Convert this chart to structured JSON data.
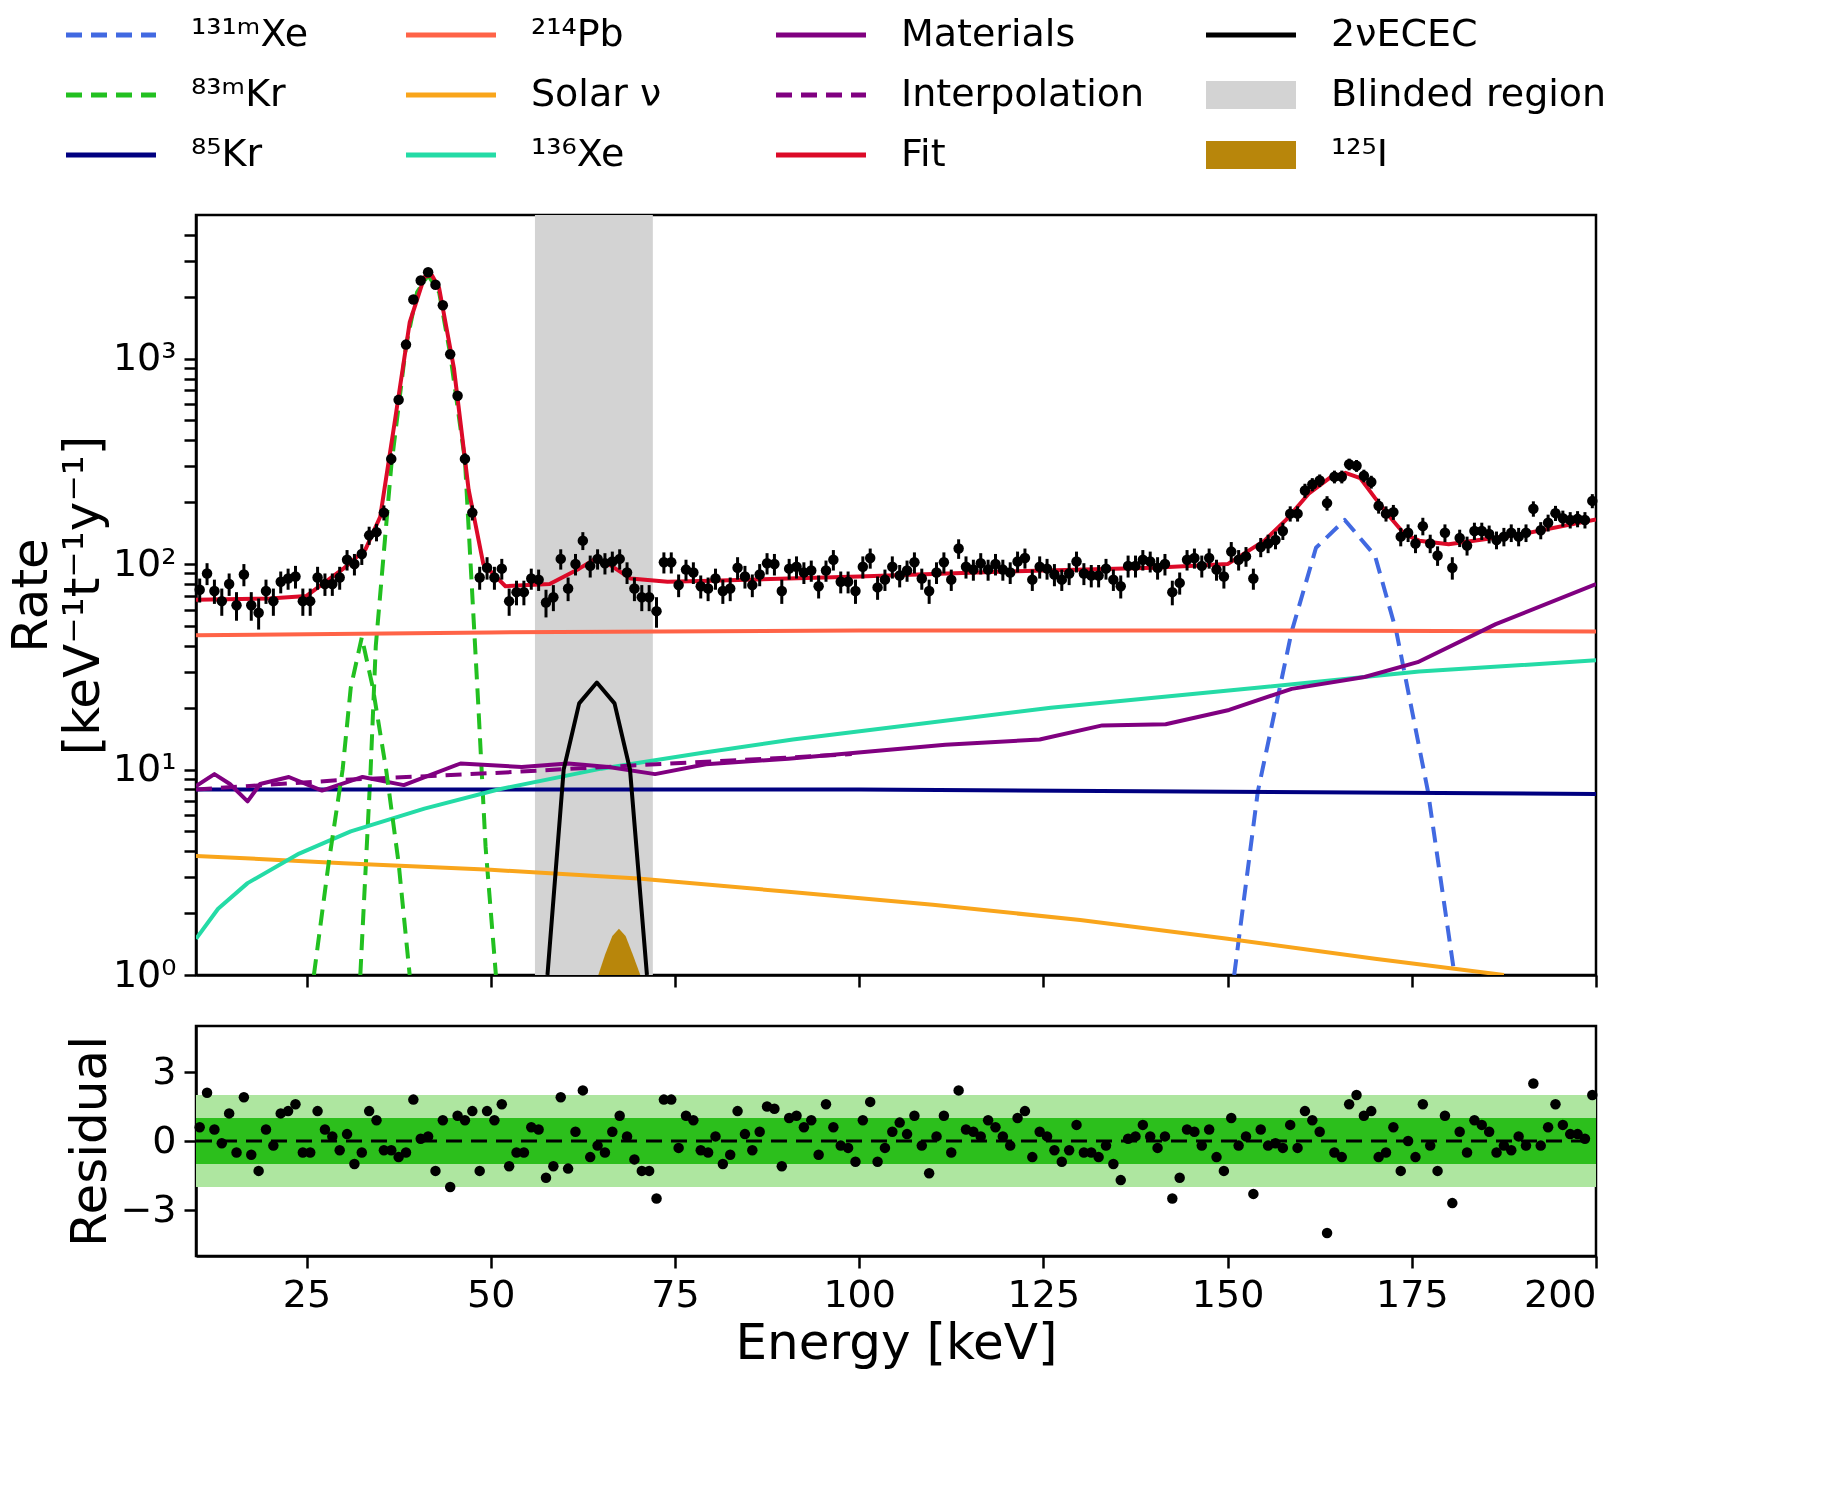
{
  "chart_data": [
    {
      "type": "line",
      "ylabel": "Rate [keV⁻¹t⁻¹y⁻¹]",
      "legend": "top",
      "log": "y",
      "tick_labels": "y",
      "xlim": [
        10,
        200
      ],
      "xticks": [
        25,
        50,
        75,
        100,
        125,
        150,
        175,
        200
      ],
      "ylim": [
        1,
        5000
      ],
      "yticks": [
        {
          "value": 1,
          "label": "10⁰"
        },
        {
          "value": 2,
          "label": null
        },
        {
          "value": 3,
          "label": null
        },
        {
          "value": 4,
          "label": null
        },
        {
          "value": 5,
          "label": null
        },
        {
          "value": 6,
          "label": null
        },
        {
          "value": 7,
          "label": null
        },
        {
          "value": 8,
          "label": null
        },
        {
          "value": 9,
          "label": null
        },
        {
          "value": 10,
          "label": "10¹"
        },
        {
          "value": 20,
          "label": null
        },
        {
          "value": 30,
          "label": null
        },
        {
          "value": 40,
          "label": null
        },
        {
          "value": 50,
          "label": null
        },
        {
          "value": 60,
          "label": null
        },
        {
          "value": 70,
          "label": null
        },
        {
          "value": 80,
          "label": null
        },
        {
          "value": 90,
          "label": null
        },
        {
          "value": 100,
          "label": "10²"
        },
        {
          "value": 200,
          "label": null
        },
        {
          "value": 300,
          "label": null
        },
        {
          "value": 400,
          "label": null
        },
        {
          "value": 500,
          "label": null
        },
        {
          "value": 600,
          "label": null
        },
        {
          "value": 700,
          "label": null
        },
        {
          "value": 800,
          "label": null
        },
        {
          "value": 900,
          "label": null
        },
        {
          "value": 1000,
          "label": "10³"
        },
        {
          "value": 2000,
          "label": null
        },
        {
          "value": 3000,
          "label": null
        },
        {
          "value": 4000,
          "label": null
        }
      ],
      "bands": [
        {
          "axis": "x",
          "from": 56,
          "to": 72,
          "label": "Blinded region",
          "color": "#d3d3d3"
        }
      ],
      "series": [
        {
          "name": "¹³¹ᵐXe",
          "color": "#4169e1",
          "line_style": "dashed",
          "x": [
            150.9,
            154.1,
            158.7,
            162,
            165.9,
            170,
            172.9,
            177.2,
            180.8
          ],
          "values": [
            1,
            7.8,
            47,
            120,
            164,
            110,
            47,
            7.8,
            1
          ]
        },
        {
          "name": "⁸³ᵐKr",
          "color": "#22c020",
          "line_style": "dashed",
          "x": [
            32.3,
            33.7,
            34.4,
            36.5,
            38.5,
            40,
            41.5,
            43,
            44.5,
            46.5,
            48.3,
            49.3,
            50.7
          ],
          "values": [
            1,
            10,
            40,
            300,
            1150,
            2100,
            2550,
            2100,
            1050,
            320,
            21,
            4.2,
            1
          ]
        },
        {
          "name": "⁸⁵Kr",
          "color": "#000080",
          "x": [
            10,
            100,
            150,
            200
          ],
          "values": [
            8.0,
            8.0,
            7.8,
            7.6
          ]
        },
        {
          "name": "²¹⁴Pb",
          "color": "#ff6347",
          "x": [
            10,
            50,
            100,
            150,
            200
          ],
          "values": [
            45,
            46.5,
            47.5,
            47.5,
            47
          ]
        },
        {
          "name": "Solar ν",
          "color": "#f9a51b",
          "x": [
            10,
            30,
            50,
            70,
            90,
            110,
            130,
            150,
            170,
            187.5
          ],
          "values": [
            3.8,
            3.5,
            3.25,
            2.95,
            2.55,
            2.2,
            1.85,
            1.5,
            1.2,
            1.0
          ]
        },
        {
          "name": "¹³⁶Xe",
          "color": "#24dba6",
          "x": [
            10,
            13,
            17,
            24,
            31,
            41,
            51,
            65,
            79,
            91,
            126,
            154,
            176,
            200
          ],
          "values": [
            1.5,
            2.1,
            2.8,
            3.9,
            5.0,
            6.45,
            8.0,
            10.1,
            12.1,
            14,
            20,
            25,
            30,
            34
          ]
        },
        {
          "name": "Materials",
          "color": "#800080",
          "x": [
            10,
            12.5,
            14.6,
            17,
            18.7,
            22.6,
            27.1,
            32.6,
            38.2,
            45.9,
            54.2,
            60.5,
            66,
            72.3,
            79.2,
            90.4,
            111.7,
            124.5,
            133,
            141.6,
            150.2,
            158.7,
            168.6,
            175.8,
            186.4,
            200
          ],
          "values": [
            8.3,
            9.5,
            8.5,
            7.0,
            8.5,
            9.2,
            7.9,
            9.2,
            8.4,
            10.7,
            10.3,
            10.7,
            10.3,
            9.5,
            10.6,
            11.3,
            13.2,
            14.0,
            16.4,
            16.6,
            19.5,
            24.7,
            28.2,
            33.3,
            51,
            80
          ]
        },
        {
          "name": "Interpolation",
          "color": "#800080",
          "line_style": "dashed",
          "x": [
            10,
            30,
            50,
            70,
            90,
            99
          ],
          "values": [
            8.0,
            8.9,
            9.6,
            10.5,
            11.4,
            11.9
          ]
        },
        {
          "name": "Fit",
          "color": "#dc0a28",
          "x": [
            10,
            20,
            25,
            30,
            33,
            35,
            37,
            39,
            41,
            42,
            43,
            45,
            47,
            49,
            52,
            58,
            62,
            64,
            66,
            69,
            74,
            80,
            100,
            120,
            140,
            150,
            155,
            158,
            161,
            164,
            166,
            168,
            170,
            172,
            174,
            176,
            180,
            190,
            200
          ],
          "values": [
            67,
            68,
            70,
            95,
            118,
            170,
            500,
            1500,
            2500,
            2550,
            2200,
            900,
            230,
            100,
            78,
            80,
            95,
            105,
            100,
            85,
            82,
            83,
            87,
            92,
            96,
            100,
            130,
            165,
            220,
            265,
            278,
            262,
            210,
            170,
            140,
            130,
            125,
            140,
            165
          ]
        },
        {
          "name": "2νECEC",
          "color": "#000000",
          "x": [
            57.7,
            59.9,
            62,
            64.4,
            66.8,
            68.9,
            71.2
          ],
          "values": [
            1,
            10,
            21,
            26.5,
            21,
            10,
            1
          ]
        },
        {
          "color": "#22c020",
          "line_style": "dashed",
          "x": [
            26,
            28,
            29.9,
            31,
            32.5,
            34,
            35.8,
            37.5,
            39
          ],
          "values": [
            1,
            3.5,
            10,
            25,
            44,
            25,
            10,
            3.5,
            1
          ]
        },
        {
          "name": "¹²⁵I",
          "type": "area",
          "color": "#b8860b",
          "x": [
            64.6,
            65.5,
            66.5,
            67.4,
            68.3,
            69.3,
            70.3
          ],
          "values": [
            1,
            1.25,
            1.55,
            1.68,
            1.55,
            1.25,
            1
          ]
        },
        {
          "type": "scatter",
          "color": "#000000",
          "marker": "circle",
          "x": [
            10.5,
            11.5,
            12.5,
            13.5,
            14.5,
            15.5,
            16.5,
            17.5,
            18.5,
            19.5,
            20.5,
            21.5,
            22.5,
            23.5,
            24.5,
            25.5,
            26.5,
            27.5,
            28.5,
            29.5,
            30.5,
            31.5,
            32.5,
            33.5,
            34.5,
            35.5,
            36.5,
            37.5,
            38.5,
            39.5,
            40.5,
            41.5,
            42.5,
            43.5,
            44.5,
            45.5,
            46.5,
            47.5,
            48.5,
            49.5,
            50.5,
            51.5,
            52.5,
            53.5,
            54.5,
            55.5,
            56.5,
            57.5,
            58.5,
            59.5,
            60.5,
            61.5,
            62.5,
            63.5,
            64.5,
            65.5,
            66.5,
            67.5,
            68.5,
            69.5,
            70.5,
            71.5,
            72.5,
            73.5,
            74.5,
            75.5,
            76.5,
            77.5,
            78.5,
            79.5,
            80.5,
            81.5,
            82.5,
            83.5,
            84.5,
            85.5,
            86.5,
            87.5,
            88.5,
            89.5,
            90.5,
            91.5,
            92.5,
            93.5,
            94.5,
            95.5,
            96.5,
            97.5,
            98.5,
            99.5,
            100.5,
            101.5,
            102.5,
            103.5,
            104.5,
            105.5,
            106.5,
            107.5,
            108.5,
            109.5,
            110.5,
            111.5,
            112.5,
            113.5,
            114.5,
            115.5,
            116.5,
            117.5,
            118.5,
            119.5,
            120.5,
            121.5,
            122.5,
            123.5,
            124.5,
            125.5,
            126.5,
            127.5,
            128.5,
            129.5,
            130.5,
            131.5,
            132.5,
            133.5,
            134.5,
            135.5,
            136.5,
            137.5,
            138.5,
            139.5,
            140.5,
            141.5,
            142.5,
            143.5,
            144.5,
            145.5,
            146.5,
            147.5,
            148.5,
            149.5,
            150.5,
            151.5,
            152.5,
            153.5,
            154.5,
            155.5,
            156.5,
            157.5,
            158.5,
            159.5,
            160.5,
            161.5,
            162.5,
            163.5,
            164.5,
            165.5,
            166.5,
            167.5,
            168.5,
            169.5,
            170.5,
            171.5,
            172.5,
            173.5,
            174.5,
            175.5,
            176.5,
            177.5,
            178.5,
            179.5,
            180.5,
            181.5,
            182.5,
            183.5,
            184.5,
            185.5,
            186.5,
            187.5,
            188.5,
            189.5,
            190.5,
            191.5,
            192.5,
            193.5,
            194.5,
            195.5,
            196.5,
            197.5,
            198.5,
            199.5
          ],
          "values": [
            75,
            90,
            74,
            66,
            80,
            63,
            89,
            63,
            58,
            74,
            66,
            82,
            85,
            87,
            66,
            66,
            86,
            80,
            80,
            86,
            105,
            100,
            112,
            138,
            143,
            178,
            325,
            630,
            1170,
            1940,
            2400,
            2630,
            2290,
            1820,
            1050,
            660,
            325,
            178,
            86,
            96,
            86,
            95,
            66,
            73,
            73,
            85,
            84,
            65,
            69,
            106,
            76,
            100,
            130,
            98,
            106,
            101,
            103,
            106,
            91,
            76,
            69,
            69,
            59,
            102,
            102,
            79,
            94,
            91,
            78,
            76,
            85,
            74,
            76,
            96,
            87,
            79,
            89,
            101,
            100,
            74,
            95,
            97,
            91,
            93,
            78,
            93,
            105,
            82,
            82,
            74,
            97,
            107,
            77,
            84,
            97,
            88,
            93,
            102,
            85,
            74,
            91,
            102,
            84,
            119,
            97,
            94,
            101,
            94,
            100,
            94,
            91,
            103,
            107,
            84,
            97,
            95,
            89,
            84,
            90,
            103,
            90,
            88,
            88,
            95,
            84,
            78,
            98,
            98,
            105,
            103,
            96,
            100,
            73,
            81,
            105,
            107,
            98,
            107,
            94,
            87,
            115,
            105,
            109,
            85,
            121,
            126,
            131,
            145,
            176,
            176,
            228,
            244,
            255,
            198,
            266,
            266,
            306,
            301,
            269,
            251,
            192,
            176,
            179,
            136,
            142,
            126,
            153,
            126,
            110,
            142,
            96,
            134,
            123,
            145,
            145,
            140,
            131,
            136,
            142,
            136,
            142,
            186,
            146,
            159,
            177,
            167,
            164,
            166,
            164,
            203
          ],
          "errors": [
            10,
            11,
            10,
            10,
            10,
            10,
            11,
            10,
            10,
            10,
            10,
            10,
            10,
            11,
            10,
            10,
            11,
            10,
            10,
            11,
            12,
            12,
            13,
            14,
            14,
            15,
            21,
            29,
            40,
            51,
            57,
            59,
            56,
            49,
            38,
            30,
            21,
            15,
            11,
            12,
            11,
            11,
            10,
            10,
            10,
            10,
            10,
            10,
            10,
            12,
            10,
            12,
            13,
            12,
            12,
            12,
            12,
            12,
            11,
            10,
            10,
            10,
            10,
            12,
            12,
            10,
            11,
            11,
            10,
            10,
            10,
            10,
            10,
            12,
            11,
            10,
            11,
            12,
            12,
            10,
            11,
            12,
            11,
            11,
            10,
            11,
            12,
            10,
            10,
            10,
            12,
            12,
            10,
            10,
            12,
            11,
            11,
            12,
            10,
            10,
            11,
            12,
            10,
            13,
            12,
            11,
            12,
            11,
            12,
            11,
            11,
            12,
            12,
            10,
            12,
            11,
            11,
            10,
            11,
            12,
            11,
            11,
            11,
            11,
            10,
            10,
            12,
            12,
            12,
            12,
            12,
            12,
            10,
            10,
            12,
            12,
            12,
            12,
            11,
            11,
            13,
            12,
            12,
            10,
            13,
            13,
            13,
            14,
            15,
            15,
            18,
            18,
            18,
            16,
            19,
            19,
            20,
            20,
            19,
            18,
            16,
            15,
            15,
            14,
            14,
            13,
            15,
            13,
            12,
            14,
            12,
            13,
            13,
            14,
            14,
            14,
            13,
            14,
            14,
            14,
            14,
            16,
            14,
            15,
            15,
            15,
            15,
            15,
            15,
            16
          ]
        }
      ]
    },
    {
      "type": "scatter",
      "xlabel": "Energy [keV]",
      "ylabel": "Residual",
      "color": "#000000",
      "marker": "circle",
      "xlim": [
        10,
        200
      ],
      "xticks": [
        25,
        50,
        75,
        100,
        125,
        150,
        175,
        200
      ],
      "ylim": [
        -5,
        5
      ],
      "yticks": [
        -3,
        0,
        3
      ],
      "bands": [
        {
          "axis": "y",
          "from": -2,
          "to": 2,
          "color": "#aee6a0"
        },
        {
          "axis": "y",
          "from": -1,
          "to": 1,
          "color": "#2cbf1c"
        }
      ],
      "ref_lines": [
        {
          "axis": "y",
          "value": 0,
          "color": "#000000",
          "line_style": "dashed"
        }
      ],
      "x": [
        10.5,
        11.5,
        12.5,
        13.5,
        14.5,
        15.5,
        16.5,
        17.5,
        18.5,
        19.5,
        20.5,
        21.5,
        22.5,
        23.5,
        24.5,
        25.5,
        26.5,
        27.5,
        28.5,
        29.5,
        30.5,
        31.5,
        32.5,
        33.5,
        34.5,
        35.5,
        36.5,
        37.5,
        38.5,
        39.5,
        40.5,
        41.5,
        42.5,
        43.5,
        44.5,
        45.5,
        46.5,
        47.5,
        48.5,
        49.5,
        50.5,
        51.5,
        52.5,
        53.5,
        54.5,
        55.5,
        56.5,
        57.5,
        58.5,
        59.5,
        60.5,
        61.5,
        62.5,
        63.5,
        64.5,
        65.5,
        66.5,
        67.5,
        68.5,
        69.5,
        70.5,
        71.5,
        72.5,
        73.5,
        74.5,
        75.5,
        76.5,
        77.5,
        78.5,
        79.5,
        80.5,
        81.5,
        82.5,
        83.5,
        84.5,
        85.5,
        86.5,
        87.5,
        88.5,
        89.5,
        90.5,
        91.5,
        92.5,
        93.5,
        94.5,
        95.5,
        96.5,
        97.5,
        98.5,
        99.5,
        100.5,
        101.5,
        102.5,
        103.5,
        104.5,
        105.5,
        106.5,
        107.5,
        108.5,
        109.5,
        110.5,
        111.5,
        112.5,
        113.5,
        114.5,
        115.5,
        116.5,
        117.5,
        118.5,
        119.5,
        120.5,
        121.5,
        122.5,
        123.5,
        124.5,
        125.5,
        126.5,
        127.5,
        128.5,
        129.5,
        130.5,
        131.5,
        132.5,
        133.5,
        134.5,
        135.5,
        136.5,
        137.5,
        138.5,
        139.5,
        140.5,
        141.5,
        142.5,
        143.5,
        144.5,
        145.5,
        146.5,
        147.5,
        148.5,
        149.5,
        150.5,
        151.5,
        152.5,
        153.5,
        154.5,
        155.5,
        156.5,
        157.5,
        158.5,
        159.5,
        160.5,
        161.5,
        162.5,
        163.5,
        164.5,
        165.5,
        166.5,
        167.5,
        168.5,
        169.5,
        170.5,
        171.5,
        172.5,
        173.5,
        174.5,
        175.5,
        176.5,
        177.5,
        178.5,
        179.5,
        180.5,
        181.5,
        182.5,
        183.5,
        184.5,
        185.5,
        186.5,
        187.5,
        188.5,
        189.5,
        190.5,
        191.5,
        192.5,
        193.5,
        194.5,
        195.5,
        196.5,
        197.5,
        198.5,
        199.5
      ],
      "values": [
        0.6,
        2.1,
        0.5,
        -0.1,
        1.2,
        -0.5,
        1.9,
        -0.6,
        -1.3,
        0.5,
        -0.2,
        1.2,
        1.3,
        1.6,
        -0.5,
        -0.5,
        1.3,
        0.5,
        0.2,
        -0.4,
        0.3,
        -1.0,
        -0.5,
        1.3,
        0.9,
        -0.4,
        -0.4,
        -0.7,
        -0.5,
        1.8,
        0.1,
        0.2,
        -1.3,
        0.9,
        -2.0,
        1.1,
        0.9,
        1.3,
        -1.3,
        1.3,
        0.9,
        1.6,
        -1.1,
        -0.5,
        -0.5,
        0.6,
        0.5,
        -1.6,
        -1.1,
        1.9,
        -1.2,
        0.4,
        2.2,
        -0.7,
        -0.2,
        -0.5,
        0.4,
        1.1,
        0.2,
        -0.8,
        -1.3,
        -1.3,
        -2.5,
        1.8,
        1.8,
        -0.3,
        1.1,
        0.9,
        -0.4,
        -0.5,
        0.2,
        -1.0,
        -0.6,
        1.3,
        0.3,
        -0.4,
        0.4,
        1.5,
        1.4,
        -1.1,
        1.0,
        1.1,
        0.6,
        0.9,
        -0.6,
        1.6,
        0.6,
        -0.2,
        -0.3,
        -0.9,
        0.9,
        1.7,
        -0.9,
        -0.3,
        0.4,
        0.8,
        0.3,
        1.1,
        -0.2,
        -1.4,
        0.2,
        1.1,
        -0.5,
        2.2,
        0.5,
        0.4,
        0.2,
        0.9,
        0.6,
        0.2,
        -0.2,
        1.0,
        1.3,
        -0.7,
        0.4,
        0.2,
        -0.4,
        -0.9,
        -0.4,
        0.7,
        -0.5,
        -0.5,
        -0.7,
        -0.2,
        -1.0,
        -1.7,
        0.1,
        0.2,
        0.7,
        0.2,
        -0.3,
        0.2,
        -2.5,
        -1.6,
        0.5,
        0.4,
        -0.2,
        0.5,
        -0.7,
        -1.3,
        1.0,
        -0.2,
        0.2,
        -2.3,
        0.5,
        -0.2,
        -0.1,
        -0.3,
        0.7,
        -0.3,
        1.3,
        0.9,
        0.4,
        -4.0,
        -0.5,
        -0.7,
        1.6,
        2.0,
        1.1,
        1.3,
        -0.7,
        -0.5,
        0.6,
        -1.3,
        0.0,
        -0.7,
        1.6,
        -0.2,
        -1.3,
        1.1,
        -2.7,
        0.4,
        -0.5,
        0.9,
        0.7,
        0.4,
        -0.5,
        -0.2,
        -0.4,
        0.2,
        -0.2,
        2.5,
        -0.2,
        0.6,
        1.6,
        0.7,
        0.3,
        0.3,
        0.1,
        2.0
      ]
    }
  ]
}
